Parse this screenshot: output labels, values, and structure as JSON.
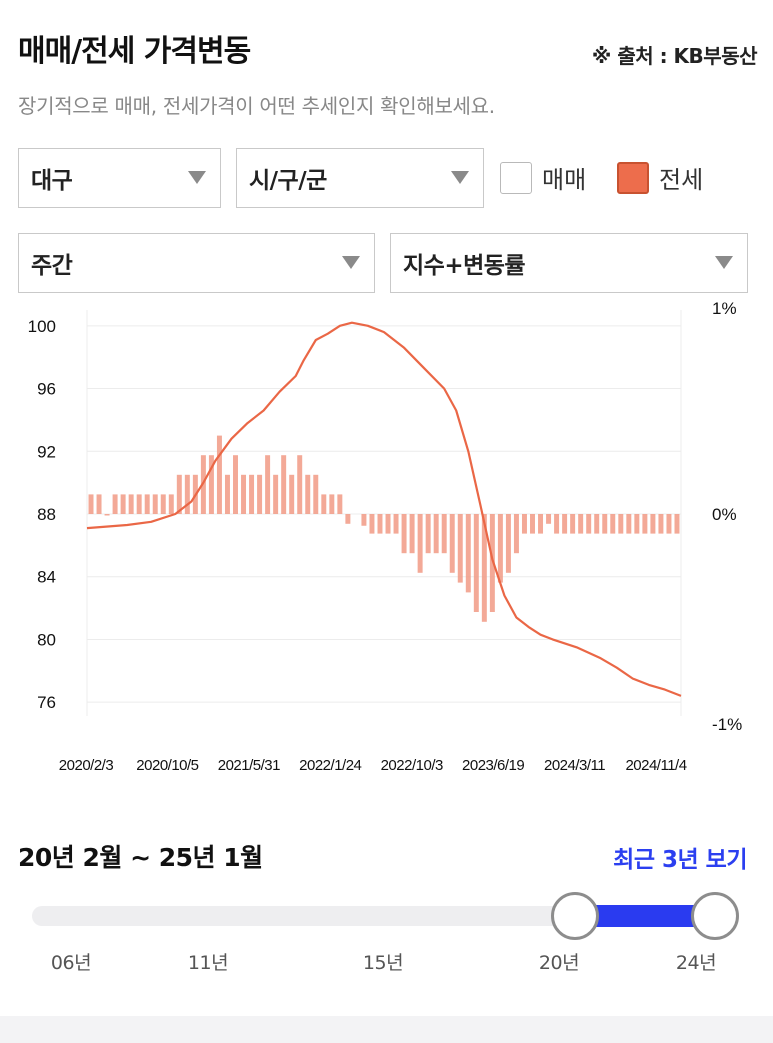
{
  "header": {
    "title": "매매/전세 가격변동",
    "source": "※ 출처 : KB부동산",
    "subtitle": "장기적으로 매매, 전세가격이 어떤 추세인지 확인해보세요."
  },
  "filters": {
    "region": "대구",
    "district": "시/구/군",
    "period": "주간",
    "metric": "지수+변동률",
    "sale_label": "매매",
    "sale_checked": false,
    "jeonse_label": "전세",
    "jeonse_checked": true
  },
  "colors": {
    "accent": "#ed6d4c",
    "bar": "#f19a85",
    "link": "#2b3ff0",
    "slider_fill": "#2a3bf0",
    "grid": "#ececec"
  },
  "chart_data": {
    "type": "line+bar",
    "series": [
      {
        "name": "전세",
        "kind": "line",
        "axis": "left"
      },
      {
        "name": "전세",
        "kind": "bar",
        "axis": "right"
      }
    ],
    "left_axis": {
      "ticks": [
        "100",
        "96",
        "92",
        "88",
        "84",
        "80",
        "76"
      ],
      "range": [
        75.5,
        100.5
      ]
    },
    "right_axis": {
      "ticks": [
        "1%",
        "0%",
        "-1%"
      ],
      "range": [
        -1,
        1
      ]
    },
    "x_ticks": [
      "2020/2/3",
      "2020/10/5",
      "2021/5/31",
      "2022/1/24",
      "2022/10/3",
      "2023/6/19",
      "2024/3/11",
      "2024/11/4"
    ],
    "index_points": [
      [
        0,
        87.1
      ],
      [
        5,
        87.3
      ],
      [
        8,
        87.5
      ],
      [
        11,
        88.0
      ],
      [
        13,
        88.8
      ],
      [
        14.5,
        90.0
      ],
      [
        16,
        91.4
      ],
      [
        18,
        92.8
      ],
      [
        20,
        93.8
      ],
      [
        22,
        94.6
      ],
      [
        24,
        95.8
      ],
      [
        26,
        96.8
      ],
      [
        27,
        97.8
      ],
      [
        28.5,
        99.1
      ],
      [
        30,
        99.5
      ],
      [
        31.5,
        100.0
      ],
      [
        33,
        100.2
      ],
      [
        35,
        100.0
      ],
      [
        37,
        99.6
      ],
      [
        39.5,
        98.6
      ],
      [
        42,
        97.3
      ],
      [
        44.5,
        96.0
      ],
      [
        46,
        94.6
      ],
      [
        47.5,
        92.0
      ],
      [
        49,
        88.6
      ],
      [
        50.5,
        85.1
      ],
      [
        52,
        82.8
      ],
      [
        53.5,
        81.4
      ],
      [
        55,
        80.8
      ],
      [
        56.5,
        80.3
      ],
      [
        58,
        80.0
      ],
      [
        61,
        79.5
      ],
      [
        64,
        78.8
      ],
      [
        66,
        78.2
      ],
      [
        68,
        77.5
      ],
      [
        70,
        77.1
      ],
      [
        72,
        76.8
      ],
      [
        74,
        76.4
      ]
    ],
    "rate_points": [
      [
        0.5,
        0.1
      ],
      [
        1.5,
        0.1
      ],
      [
        2.5,
        0.0
      ],
      [
        3.5,
        0.1
      ],
      [
        4.5,
        0.1
      ],
      [
        5.5,
        0.1
      ],
      [
        6.5,
        0.1
      ],
      [
        7.5,
        0.1
      ],
      [
        8.5,
        0.1
      ],
      [
        9.5,
        0.1
      ],
      [
        10.5,
        0.1
      ],
      [
        11.5,
        0.2
      ],
      [
        12.5,
        0.2
      ],
      [
        13.5,
        0.2
      ],
      [
        14.5,
        0.3
      ],
      [
        15.5,
        0.3
      ],
      [
        16.5,
        0.4
      ],
      [
        17.5,
        0.2
      ],
      [
        18.5,
        0.3
      ],
      [
        19.5,
        0.2
      ],
      [
        20.5,
        0.2
      ],
      [
        21.5,
        0.2
      ],
      [
        22.5,
        0.3
      ],
      [
        23.5,
        0.2
      ],
      [
        24.5,
        0.3
      ],
      [
        25.5,
        0.2
      ],
      [
        26.5,
        0.3
      ],
      [
        27.5,
        0.2
      ],
      [
        28.5,
        0.2
      ],
      [
        29.5,
        0.1
      ],
      [
        30.5,
        0.1
      ],
      [
        31.5,
        0.1
      ],
      [
        32.5,
        -0.05
      ],
      [
        34.5,
        -0.06
      ],
      [
        35.5,
        -0.1
      ],
      [
        36.5,
        -0.1
      ],
      [
        37.5,
        -0.1
      ],
      [
        38.5,
        -0.1
      ],
      [
        39.5,
        -0.2
      ],
      [
        40.5,
        -0.2
      ],
      [
        41.5,
        -0.3
      ],
      [
        42.5,
        -0.2
      ],
      [
        43.5,
        -0.2
      ],
      [
        44.5,
        -0.2
      ],
      [
        45.5,
        -0.3
      ],
      [
        46.5,
        -0.35
      ],
      [
        47.5,
        -0.4
      ],
      [
        48.5,
        -0.5
      ],
      [
        49.5,
        -0.55
      ],
      [
        50.5,
        -0.5
      ],
      [
        51.5,
        -0.35
      ],
      [
        52.5,
        -0.3
      ],
      [
        53.5,
        -0.2
      ],
      [
        54.5,
        -0.1
      ],
      [
        55.5,
        -0.1
      ],
      [
        56.5,
        -0.1
      ],
      [
        57.5,
        -0.05
      ],
      [
        58.5,
        -0.1
      ],
      [
        59.5,
        -0.1
      ],
      [
        60.5,
        -0.1
      ],
      [
        61.5,
        -0.1
      ],
      [
        62.5,
        -0.1
      ],
      [
        63.5,
        -0.1
      ],
      [
        64.5,
        -0.1
      ],
      [
        65.5,
        -0.1
      ],
      [
        66.5,
        -0.1
      ],
      [
        67.5,
        -0.1
      ],
      [
        68.5,
        -0.1
      ],
      [
        69.5,
        -0.1
      ],
      [
        70.5,
        -0.1
      ],
      [
        71.5,
        -0.1
      ],
      [
        72.5,
        -0.1
      ],
      [
        73.5,
        -0.1
      ]
    ]
  },
  "range": {
    "label": "20년 2월 ~ 25년 1월",
    "recent_button": "최근 3년 보기",
    "ticks": [
      "06년",
      "11년",
      "15년",
      "20년",
      "24년"
    ],
    "start_year": 2020,
    "end_year": 2024
  }
}
